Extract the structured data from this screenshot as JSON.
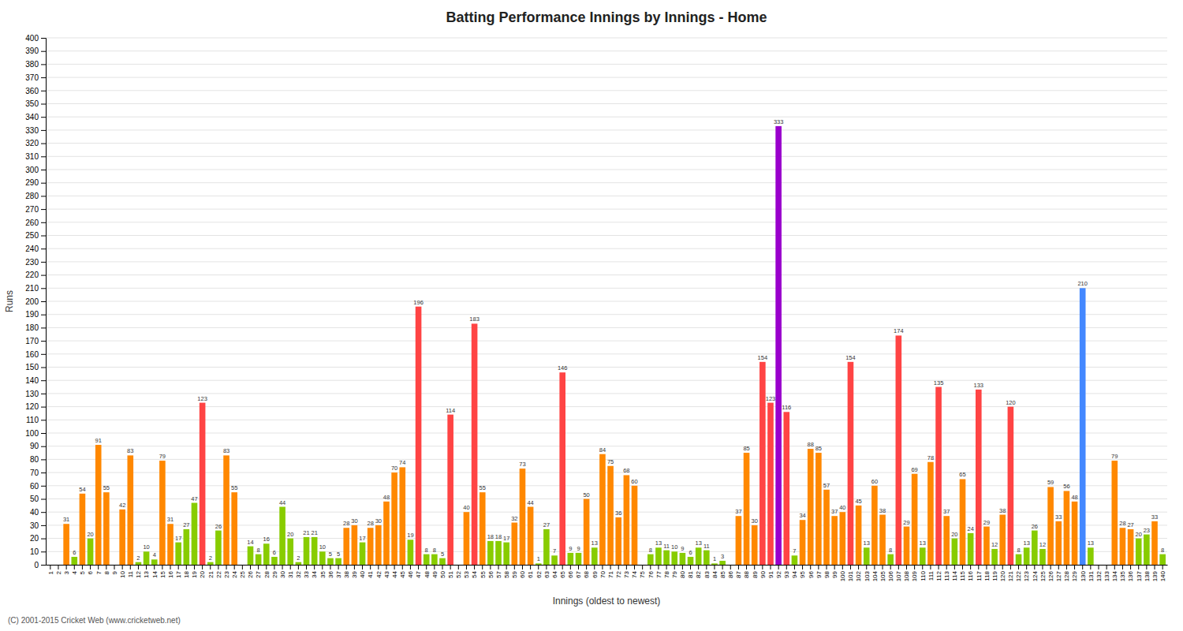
{
  "chart_data": {
    "type": "bar",
    "title": "Batting Performance Innings by Innings - Home",
    "x_label": "Innings (oldest to newest)",
    "y_label": "Runs",
    "annotations": [
      "(C) 2001-2015 Cricket Web (www.cricketweb.net)"
    ],
    "categories": [
      "1",
      "2",
      "3",
      "4",
      "5",
      "6",
      "7",
      "8",
      "9",
      "10",
      "11",
      "12",
      "13",
      "14",
      "15",
      "16",
      "17",
      "18",
      "19",
      "20",
      "21",
      "22",
      "23",
      "24",
      "25",
      "26",
      "27",
      "28",
      "29",
      "30",
      "31",
      "32",
      "33",
      "34",
      "35",
      "36",
      "37",
      "38",
      "39",
      "40",
      "41",
      "42",
      "43",
      "44",
      "45",
      "46",
      "47",
      "48",
      "49",
      "50",
      "51",
      "52",
      "53",
      "54",
      "55",
      "56",
      "57",
      "58",
      "59",
      "60",
      "61",
      "62",
      "63",
      "64",
      "65",
      "66",
      "67",
      "68",
      "69",
      "70",
      "71",
      "72",
      "73",
      "74",
      "75",
      "76",
      "77",
      "78",
      "79",
      "80",
      "81",
      "82",
      "83",
      "84",
      "85",
      "86",
      "87",
      "88",
      "89",
      "90",
      "91",
      "92",
      "93",
      "94",
      "95",
      "96",
      "97",
      "98",
      "99",
      "100",
      "101",
      "102",
      "103",
      "104",
      "105",
      "106",
      "107",
      "108",
      "109",
      "110",
      "111",
      "112",
      "113",
      "114",
      "115",
      "116",
      "117",
      "118",
      "119",
      "120",
      "121",
      "122",
      "123",
      "124",
      "125",
      "126",
      "127",
      "128",
      "129",
      "130",
      "131",
      "132",
      "133",
      "134",
      "135",
      "136",
      "137",
      "138",
      "139",
      "140"
    ],
    "values": [
      0,
      0,
      31,
      6,
      54,
      20,
      91,
      55,
      0,
      42,
      83,
      2,
      10,
      4,
      79,
      31,
      17,
      27,
      47,
      123,
      2,
      26,
      83,
      55,
      0,
      14,
      8,
      16,
      6,
      44,
      20,
      2,
      21,
      21,
      10,
      5,
      5,
      28,
      30,
      17,
      28,
      30,
      48,
      70,
      74,
      19,
      196,
      8,
      8,
      5,
      114,
      0,
      40,
      183,
      55,
      18,
      18,
      17,
      32,
      73,
      44,
      1,
      27,
      7,
      146,
      9,
      9,
      50,
      13,
      84,
      75,
      36,
      68,
      60,
      0,
      8,
      13,
      11,
      10,
      9,
      6,
      13,
      11,
      1,
      3,
      0,
      37,
      85,
      30,
      154,
      123,
      333,
      116,
      7,
      34,
      88,
      85,
      57,
      37,
      40,
      154,
      45,
      13,
      60,
      38,
      8,
      174,
      29,
      69,
      13,
      78,
      135,
      37,
      20,
      65,
      24,
      133,
      29,
      12,
      38,
      120,
      8,
      13,
      26,
      12,
      59,
      33,
      56,
      48,
      210,
      13,
      0,
      0,
      79,
      28,
      27,
      20,
      23,
      33,
      8
    ],
    "value_labels": [
      null,
      null,
      "31",
      "6",
      "54",
      "20",
      "91",
      "55",
      null,
      "42",
      "83",
      "2",
      "10",
      "4",
      "79",
      "31",
      "17",
      "27",
      "47",
      "123",
      "2",
      "26",
      "83",
      "55",
      null,
      "14",
      "8",
      "16",
      "6",
      "44",
      "20",
      "2",
      "21",
      "21",
      "10",
      "5",
      "5",
      "28",
      "30",
      "17",
      "28",
      "30",
      "48",
      "70",
      "74",
      "19",
      "196",
      "8",
      "8",
      "5",
      "114",
      null,
      "40",
      "183",
      "55",
      "18",
      "18",
      "17",
      "32",
      "73",
      "44",
      "1",
      "27",
      "7",
      "146",
      "9",
      "9",
      "50",
      "13",
      "84",
      "75",
      "36",
      "68",
      "60",
      null,
      "8",
      "13",
      "11",
      "10",
      "9",
      "6",
      "13",
      "11",
      "1",
      "3",
      null,
      "37",
      "85",
      "30",
      "154",
      "123",
      "333",
      "116",
      "7",
      "34",
      "88",
      "85",
      "57",
      "37",
      "40",
      "154",
      "45",
      "13",
      "60",
      "38",
      "8",
      "174",
      "29",
      "69",
      "13",
      "78",
      "135",
      "37",
      "20",
      "65",
      "24",
      "133",
      "29",
      "12",
      "38",
      "120",
      "8",
      "13",
      "26",
      "12",
      "59",
      "33",
      "56",
      "48",
      "210",
      "13",
      null,
      null,
      "79",
      "28",
      "27",
      "20",
      "23",
      "33",
      "8"
    ],
    "colors": [
      "#ff4444",
      "#ff4444",
      "#ff8800",
      "#88cc00",
      "#ff8800",
      "#88cc00",
      "#ff8800",
      "#ff8800",
      "#ff4444",
      "#ff8800",
      "#ff8800",
      "#88cc00",
      "#88cc00",
      "#88cc00",
      "#ff8800",
      "#ff8800",
      "#88cc00",
      "#88cc00",
      "#88cc00",
      "#ff4444",
      "#88cc00",
      "#88cc00",
      "#ff8800",
      "#ff8800",
      "#ff4444",
      "#88cc00",
      "#88cc00",
      "#88cc00",
      "#88cc00",
      "#88cc00",
      "#88cc00",
      "#88cc00",
      "#88cc00",
      "#88cc00",
      "#88cc00",
      "#88cc00",
      "#88cc00",
      "#ff8800",
      "#ff8800",
      "#88cc00",
      "#ff8800",
      "#ff8800",
      "#ff8800",
      "#ff8800",
      "#ff8800",
      "#88cc00",
      "#ff4444",
      "#88cc00",
      "#88cc00",
      "#88cc00",
      "#ff4444",
      "#ff4444",
      "#ff8800",
      "#ff4444",
      "#ff8800",
      "#88cc00",
      "#88cc00",
      "#88cc00",
      "#ff8800",
      "#ff8800",
      "#ff8800",
      "#88cc00",
      "#88cc00",
      "#88cc00",
      "#ff4444",
      "#88cc00",
      "#88cc00",
      "#ff8800",
      "#88cc00",
      "#ff8800",
      "#ff8800",
      "#ff8800",
      "#ff8800",
      "#ff8800",
      "#ff4444",
      "#88cc00",
      "#88cc00",
      "#88cc00",
      "#88cc00",
      "#88cc00",
      "#88cc00",
      "#88cc00",
      "#88cc00",
      "#88cc00",
      "#88cc00",
      "#ff4444",
      "#ff8800",
      "#ff8800",
      "#ff8800",
      "#ff4444",
      "#ff4444",
      "#9900cc",
      "#ff4444",
      "#88cc00",
      "#ff8800",
      "#ff8800",
      "#ff8800",
      "#ff8800",
      "#ff8800",
      "#ff8800",
      "#ff4444",
      "#ff8800",
      "#88cc00",
      "#ff8800",
      "#ff8800",
      "#88cc00",
      "#ff4444",
      "#ff8800",
      "#ff8800",
      "#88cc00",
      "#ff8800",
      "#ff4444",
      "#ff8800",
      "#88cc00",
      "#ff8800",
      "#88cc00",
      "#ff4444",
      "#ff8800",
      "#88cc00",
      "#ff8800",
      "#ff4444",
      "#88cc00",
      "#88cc00",
      "#88cc00",
      "#88cc00",
      "#ff8800",
      "#ff8800",
      "#ff8800",
      "#ff8800",
      "#4488ff",
      "#88cc00",
      "#ff4444",
      "#ff4444",
      "#ff8800",
      "#ff8800",
      "#ff8800",
      "#88cc00",
      "#88cc00",
      "#ff8800",
      "#88cc00"
    ],
    "ylim": [
      0,
      400
    ],
    "yticks": [
      0,
      10,
      20,
      30,
      40,
      50,
      60,
      70,
      80,
      90,
      100,
      110,
      120,
      130,
      140,
      150,
      160,
      170,
      180,
      190,
      200,
      210,
      220,
      230,
      240,
      250,
      260,
      270,
      280,
      290,
      300,
      310,
      320,
      330,
      340,
      350,
      360,
      370,
      380,
      390,
      400
    ],
    "grid": true,
    "data_labels": true
  }
}
